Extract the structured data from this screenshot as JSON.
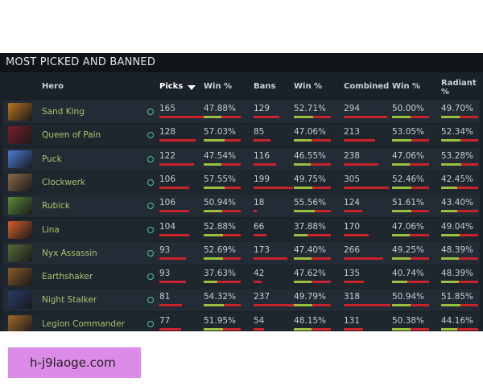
{
  "panel_title": "MOST PICKED AND BANNED",
  "columns": [
    "Hero",
    "Picks",
    "Win %",
    "Bans",
    "Win %",
    "Combined",
    "Win %",
    "Radiant %"
  ],
  "rows": [
    {
      "hero": "Sand King",
      "picks": 165,
      "picks_win": {
        "value": 47.88,
        "label": "47.88%"
      },
      "bans": 129,
      "bans_win": {
        "value": 52.71,
        "label": "52.71%"
      },
      "combined": 294,
      "combined_win": {
        "value": 50.0,
        "label": "50.00%"
      },
      "radiant": {
        "value": 49.7,
        "label": "49.70%"
      }
    },
    {
      "hero": "Queen of Pain",
      "picks": 128,
      "picks_win": {
        "value": 57.03,
        "label": "57.03%"
      },
      "bans": 85,
      "bans_win": {
        "value": 47.06,
        "label": "47.06%"
      },
      "combined": 213,
      "combined_win": {
        "value": 53.05,
        "label": "53.05%"
      },
      "radiant": {
        "value": 52.34,
        "label": "52.34%"
      }
    },
    {
      "hero": "Puck",
      "picks": 122,
      "picks_win": {
        "value": 47.54,
        "label": "47.54%"
      },
      "bans": 116,
      "bans_win": {
        "value": 46.55,
        "label": "46.55%"
      },
      "combined": 238,
      "combined_win": {
        "value": 47.06,
        "label": "47.06%"
      },
      "radiant": {
        "value": 53.28,
        "label": "53.28%"
      }
    },
    {
      "hero": "Clockwerk",
      "picks": 106,
      "picks_win": {
        "value": 57.55,
        "label": "57.55%"
      },
      "bans": 199,
      "bans_win": {
        "value": 49.75,
        "label": "49.75%"
      },
      "combined": 305,
      "combined_win": {
        "value": 52.46,
        "label": "52.46%"
      },
      "radiant": {
        "value": 42.45,
        "label": "42.45%"
      }
    },
    {
      "hero": "Rubick",
      "picks": 106,
      "picks_win": {
        "value": 50.94,
        "label": "50.94%"
      },
      "bans": 18,
      "bans_win": {
        "value": 55.56,
        "label": "55.56%"
      },
      "combined": 124,
      "combined_win": {
        "value": 51.61,
        "label": "51.61%"
      },
      "radiant": {
        "value": 43.4,
        "label": "43.40%"
      }
    },
    {
      "hero": "Lina",
      "picks": 104,
      "picks_win": {
        "value": 52.88,
        "label": "52.88%"
      },
      "bans": 66,
      "bans_win": {
        "value": 37.88,
        "label": "37.88%"
      },
      "combined": 170,
      "combined_win": {
        "value": 47.06,
        "label": "47.06%"
      },
      "radiant": {
        "value": 49.04,
        "label": "49.04%"
      }
    },
    {
      "hero": "Nyx Assassin",
      "picks": 93,
      "picks_win": {
        "value": 52.69,
        "label": "52.69%"
      },
      "bans": 173,
      "bans_win": {
        "value": 47.4,
        "label": "47.40%"
      },
      "combined": 266,
      "combined_win": {
        "value": 49.25,
        "label": "49.25%"
      },
      "radiant": {
        "value": 48.39,
        "label": "48.39%"
      }
    },
    {
      "hero": "Earthshaker",
      "picks": 93,
      "picks_win": {
        "value": 37.63,
        "label": "37.63%"
      },
      "bans": 42,
      "bans_win": {
        "value": 47.62,
        "label": "47.62%"
      },
      "combined": 135,
      "combined_win": {
        "value": 40.74,
        "label": "40.74%"
      },
      "radiant": {
        "value": 48.39,
        "label": "48.39%"
      }
    },
    {
      "hero": "Night Stalker",
      "picks": 81,
      "picks_win": {
        "value": 54.32,
        "label": "54.32%"
      },
      "bans": 237,
      "bans_win": {
        "value": 49.79,
        "label": "49.79%"
      },
      "combined": 318,
      "combined_win": {
        "value": 50.94,
        "label": "50.94%"
      },
      "radiant": {
        "value": 51.85,
        "label": "51.85%"
      }
    },
    {
      "hero": "Legion Commander",
      "picks": 77,
      "picks_win": {
        "value": 51.95,
        "label": "51.95%"
      },
      "bans": 54,
      "bans_win": {
        "value": 48.15,
        "label": "48.15%"
      },
      "combined": 131,
      "combined_win": {
        "value": 50.38,
        "label": "50.38%"
      },
      "radiant": {
        "value": 44.16,
        "label": "44.16%"
      }
    }
  ],
  "watermark": "h-j9laoge.com"
}
